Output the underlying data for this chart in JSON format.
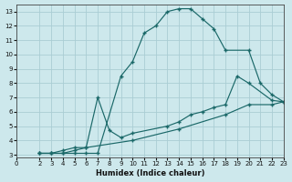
{
  "xlabel": "Humidex (Indice chaleur)",
  "background_color": "#cde8ec",
  "grid_color": "#aacdd4",
  "line_color": "#1a6868",
  "xlim": [
    0,
    23
  ],
  "ylim": [
    2.8,
    13.5
  ],
  "xticks": [
    0,
    2,
    3,
    4,
    5,
    6,
    7,
    8,
    9,
    10,
    11,
    12,
    13,
    14,
    15,
    16,
    17,
    18,
    19,
    20,
    21,
    22,
    23
  ],
  "yticks": [
    3,
    4,
    5,
    6,
    7,
    8,
    9,
    10,
    11,
    12,
    13
  ],
  "lines": [
    {
      "x": [
        2,
        3,
        4,
        5,
        6,
        7,
        9,
        10,
        11,
        12,
        13,
        14,
        15,
        16,
        17,
        18,
        20,
        21,
        22,
        23
      ],
      "y": [
        3.1,
        3.1,
        3.1,
        3.1,
        3.1,
        3.1,
        8.5,
        9.5,
        11.5,
        12.0,
        13.0,
        13.2,
        13.2,
        12.5,
        11.8,
        10.3,
        10.3,
        8.0,
        7.2,
        6.7
      ]
    },
    {
      "x": [
        2,
        3,
        4,
        5,
        6,
        7,
        8,
        9,
        10,
        13,
        14,
        15,
        16,
        17,
        18,
        19,
        20,
        22,
        23
      ],
      "y": [
        3.1,
        3.1,
        3.3,
        3.5,
        3.5,
        7.0,
        4.7,
        4.2,
        4.5,
        5.0,
        5.3,
        5.8,
        6.0,
        6.3,
        6.5,
        8.5,
        8.0,
        6.8,
        6.7
      ]
    },
    {
      "x": [
        2,
        3,
        4,
        5,
        6,
        10,
        14,
        18,
        20,
        22,
        23
      ],
      "y": [
        3.1,
        3.1,
        3.1,
        3.3,
        3.5,
        4.0,
        4.8,
        5.8,
        6.5,
        6.5,
        6.7
      ]
    }
  ]
}
